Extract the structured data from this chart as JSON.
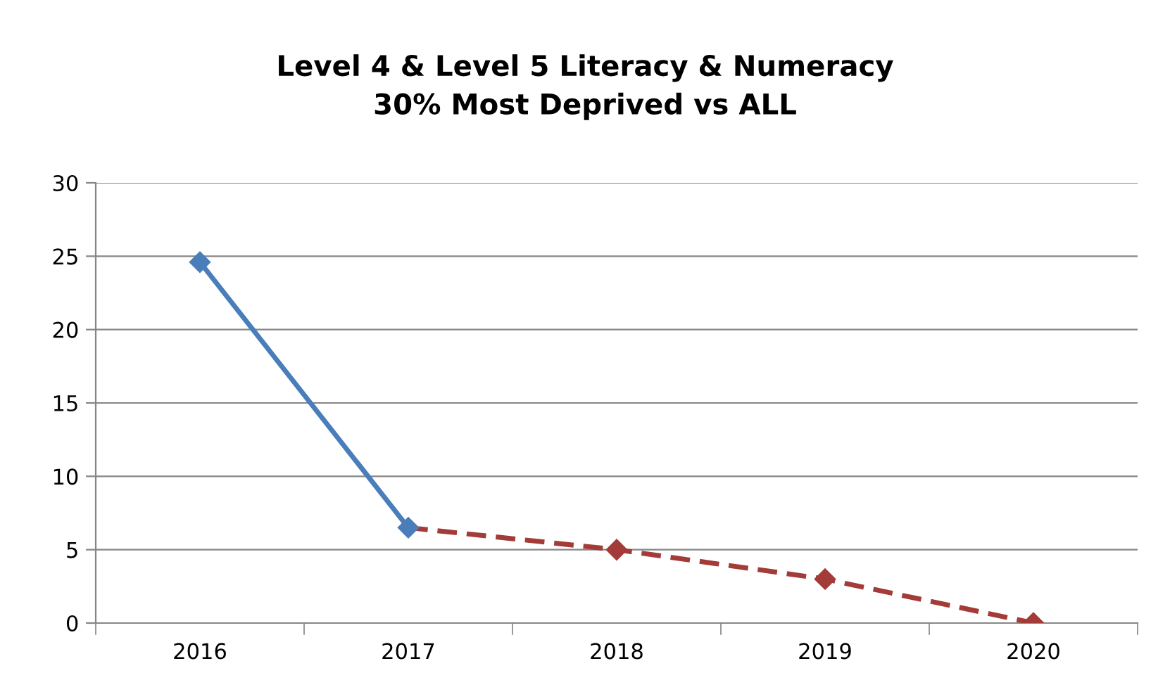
{
  "chart_data": {
    "type": "line",
    "title": "Level 4 & Level 5 Literacy & Numeracy\n30% Most Deprived vs ALL",
    "categories": [
      "2016",
      "2017",
      "2018",
      "2019",
      "2020"
    ],
    "series": [
      {
        "color": "#4a7ebb",
        "values": [
          24.6,
          6.5,
          null,
          null,
          null
        ],
        "line_style": "solid"
      },
      {
        "color": "#a33b38",
        "values": [
          null,
          6.5,
          5,
          3,
          0
        ],
        "line_style": "dashed"
      }
    ],
    "ylim": [
      0,
      30
    ],
    "yticks": [
      0,
      5,
      10,
      15,
      20,
      25,
      30
    ],
    "grid": "y",
    "marker": "diamond"
  }
}
